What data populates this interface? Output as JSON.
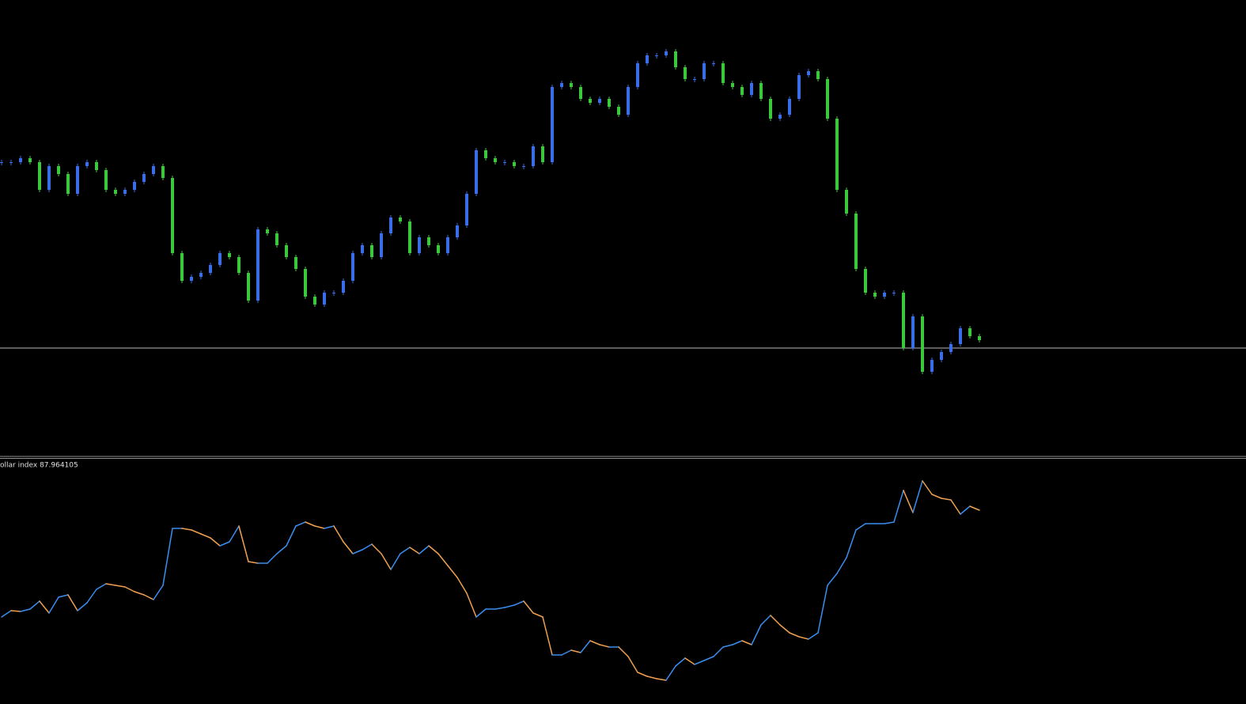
{
  "chart_data": [
    {
      "type": "candlestick",
      "up_color": "#3a6ee8",
      "down_color": "#3cc83c",
      "ylim": [
        0,
        578
      ],
      "hline": 138,
      "hline_color": "#b8b8b8",
      "values": [
        373,
        373,
        378,
        373,
        338,
        368,
        358,
        333,
        368,
        373,
        363,
        338,
        333,
        338,
        348,
        358,
        368,
        353,
        258,
        223,
        228,
        233,
        243,
        258,
        253,
        233,
        198,
        288,
        283,
        268,
        253,
        238,
        203,
        193,
        208,
        208,
        223,
        258,
        268,
        253,
        283,
        303,
        298,
        258,
        278,
        268,
        258,
        278,
        293,
        333,
        388,
        378,
        373,
        373,
        368,
        368,
        393,
        373,
        468,
        473,
        468,
        453,
        448,
        453,
        443,
        433,
        468,
        498,
        508,
        508,
        513,
        493,
        478,
        478,
        498,
        498,
        473,
        468,
        458,
        473,
        453,
        428,
        433,
        453,
        483,
        488,
        478,
        428,
        338,
        308,
        238,
        208,
        203,
        208,
        208,
        138,
        178,
        108,
        123,
        133,
        143,
        163,
        153,
        148
      ]
    },
    {
      "type": "line",
      "title": "ollar index 87.964105",
      "up_color": "#3a8ef0",
      "down_color": "#f0a050",
      "ylim": [
        0,
        310
      ],
      "values": [
        110,
        118,
        117,
        120,
        130,
        115,
        135,
        138,
        118,
        128,
        145,
        152,
        150,
        148,
        142,
        138,
        132,
        150,
        222,
        222,
        220,
        215,
        210,
        200,
        205,
        225,
        180,
        178,
        178,
        190,
        200,
        225,
        230,
        225,
        222,
        225,
        205,
        190,
        195,
        202,
        190,
        170,
        190,
        198,
        190,
        200,
        190,
        175,
        160,
        140,
        110,
        120,
        120,
        122,
        125,
        130,
        115,
        110,
        62,
        62,
        68,
        65,
        80,
        75,
        72,
        72,
        60,
        40,
        35,
        32,
        30,
        48,
        58,
        50,
        55,
        60,
        72,
        75,
        80,
        75,
        100,
        112,
        100,
        90,
        85,
        82,
        90,
        150,
        165,
        185,
        220,
        228,
        228,
        228,
        230,
        270,
        242,
        282,
        265,
        260,
        258,
        240,
        250,
        245
      ]
    }
  ]
}
